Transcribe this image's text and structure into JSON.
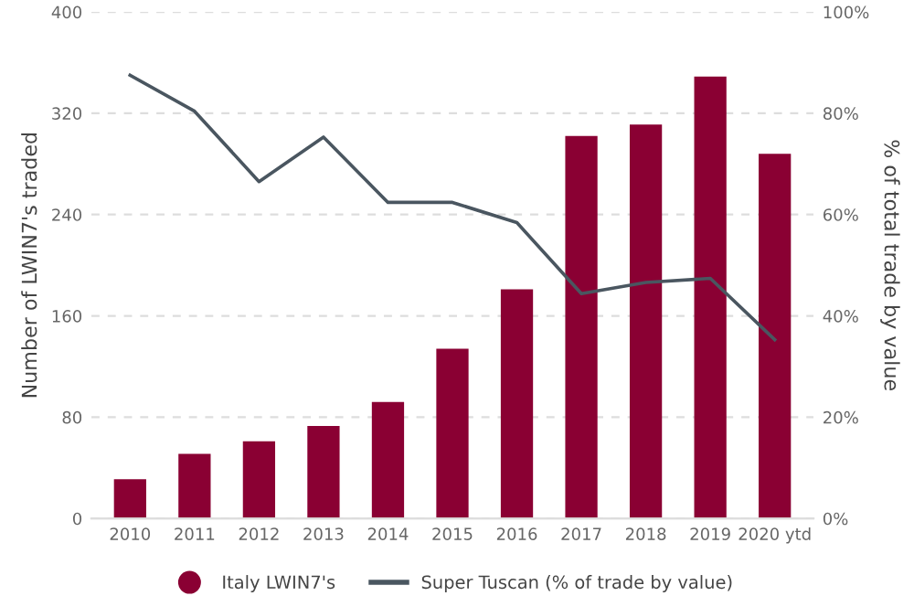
{
  "chart_data": {
    "type": "bar",
    "categories": [
      "2010",
      "2011",
      "2012",
      "2013",
      "2014",
      "2015",
      "2016",
      "2017",
      "2018",
      "2019",
      "2020 ytd"
    ],
    "ylabel": "Number of LWIN7's traded",
    "y2label": "% of total trade by value",
    "ylim": [
      0,
      400
    ],
    "yticks": [
      0,
      80,
      160,
      240,
      320,
      400
    ],
    "y2lim": [
      0,
      100
    ],
    "y2ticks": [
      {
        "value": 0,
        "label": "0%"
      },
      {
        "value": 20,
        "label": "20%"
      },
      {
        "value": 40,
        "label": "40%"
      },
      {
        "value": 60,
        "label": "60%"
      },
      {
        "value": 80,
        "label": "80%"
      },
      {
        "value": 100,
        "label": "100%"
      }
    ],
    "series": [
      {
        "name": "Italy LWIN7's",
        "color": "#8a0033",
        "values": [
          31,
          51,
          61,
          73,
          92,
          134,
          181,
          302,
          311,
          349,
          288
        ]
      },
      {
        "name": "Super Tuscan (% of trade by value)",
        "type": "line",
        "axis": "y2",
        "color": "#4a5660",
        "values": [
          87.5,
          80.4,
          66.5,
          75.3,
          62.4,
          62.4,
          58.4,
          44.4,
          46.6,
          47.4,
          35.3
        ]
      }
    ],
    "grid": "y",
    "legend": "bottom"
  }
}
